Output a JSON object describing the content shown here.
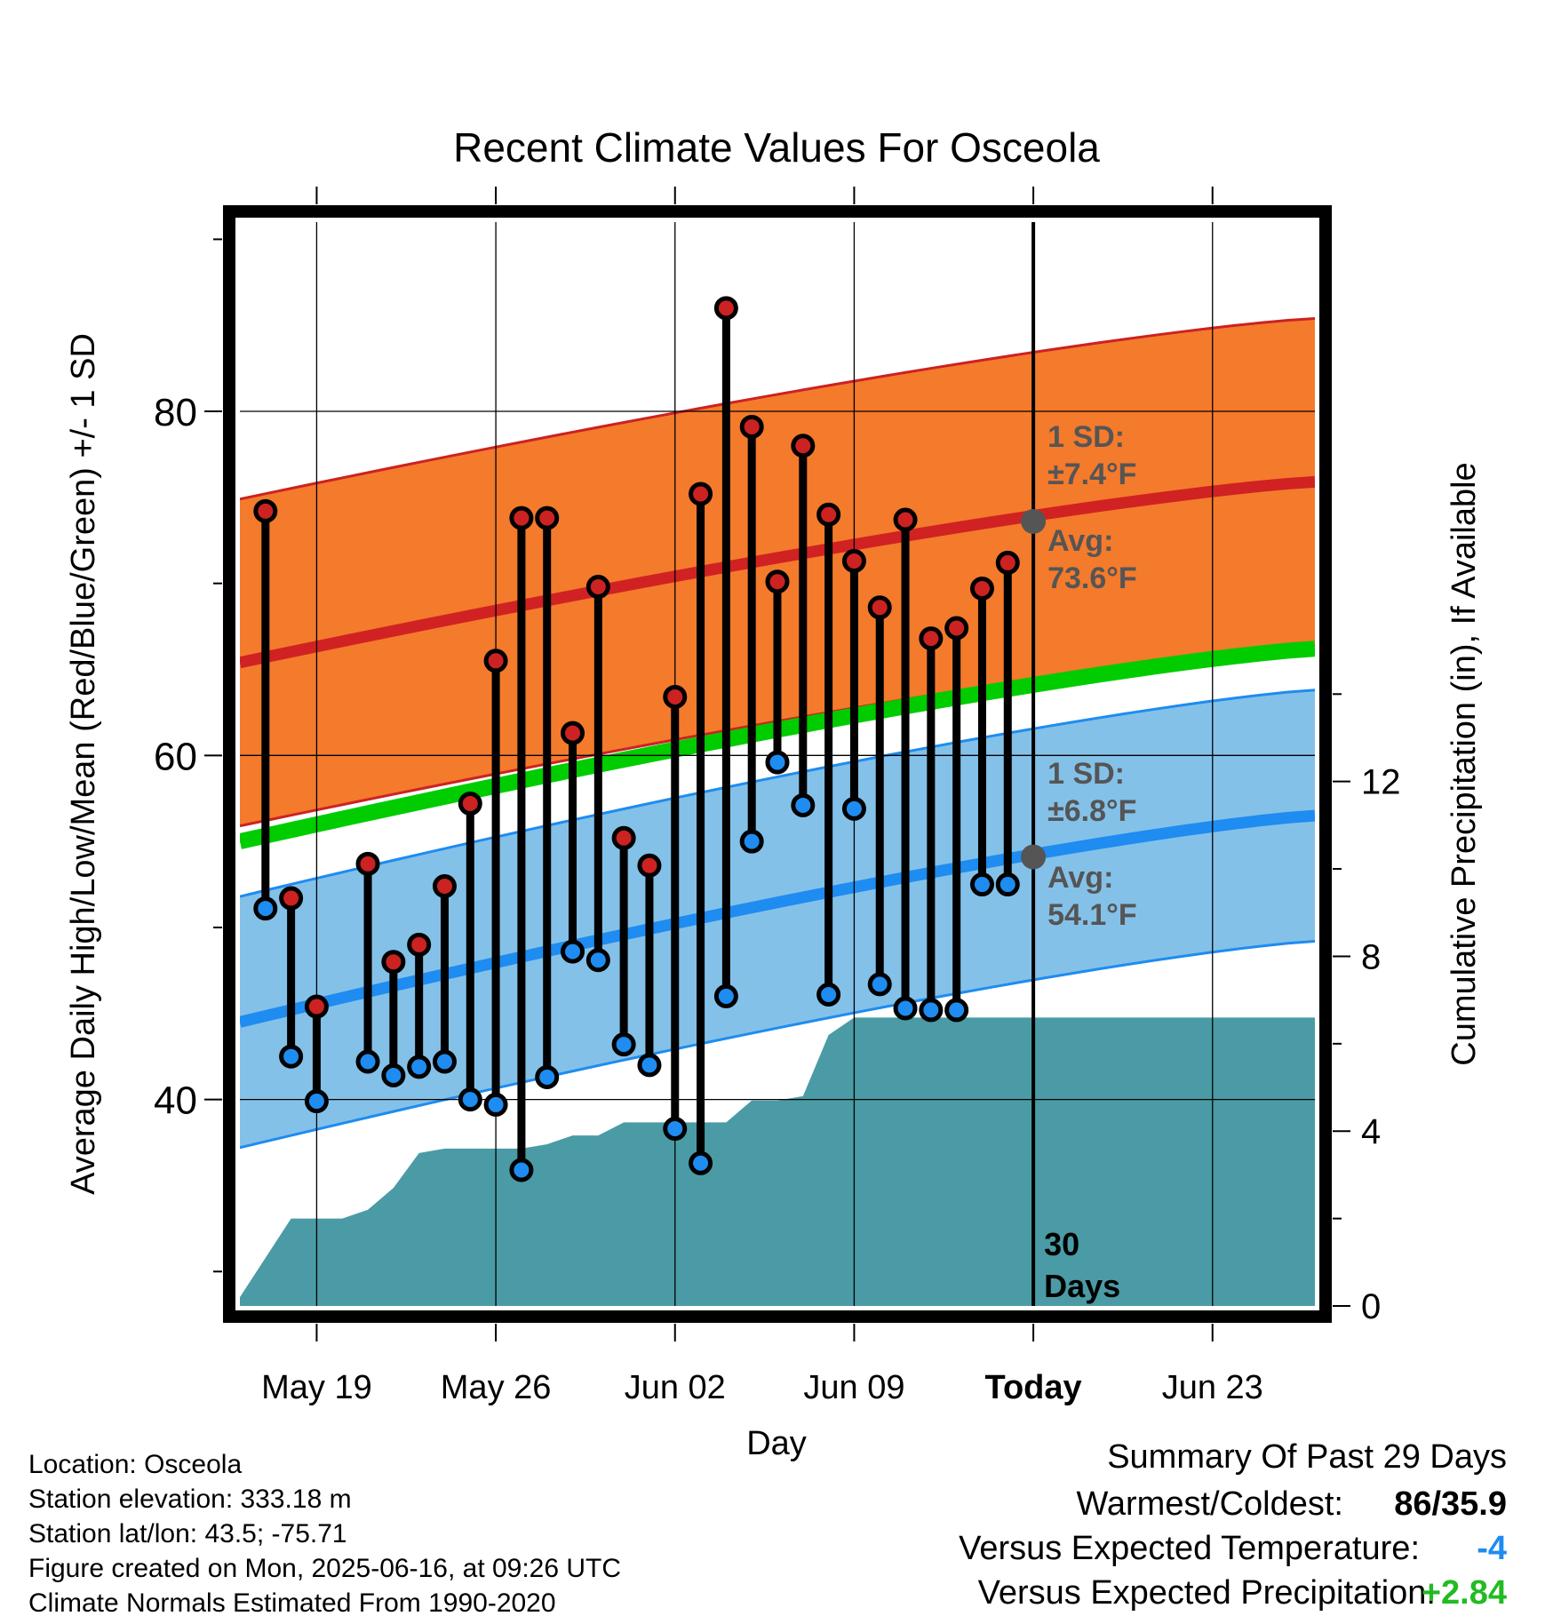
{
  "chart_data": {
    "type": "line",
    "title": "Recent Climate Values For Osceola",
    "xlabel": "Day",
    "ylabel": "Average Daily High/Low/Mean (Red/Blue/Green) +/- 1 SD",
    "y2label": "Cumulative Precipitation (in), If Available",
    "x_ticks": [
      "May 19",
      "May 26",
      "Jun 02",
      "Jun 09",
      "Today",
      "Jun 23"
    ],
    "y_ticks": [
      "40",
      "60",
      "80"
    ],
    "y2_ticks": [
      "0",
      "4",
      "8",
      "12"
    ],
    "ylim": [
      28,
      91
    ],
    "y2lim": [
      0,
      24.8
    ],
    "x_start": "2025-05-16",
    "x_end": "2025-06-27",
    "today": "2025-06-16",
    "today_label": "30 Days",
    "grid": true,
    "colors": {
      "high_band": "#f47a2c",
      "high_band_edge": "#cc2222",
      "high_mean": "#d02222",
      "low_band": "#84c1e8",
      "low_band_edge": "#1e8cf0",
      "low_mean": "#1e8cf0",
      "mean": "#00cc00",
      "precip": "#4a9ba5",
      "high_marker": "#cc2222",
      "low_marker": "#1e8cf0",
      "avg_dot": "#555555",
      "annotation": "#555555"
    },
    "normal_high": {
      "start": 65.4,
      "end": 75.9,
      "sd": 9.5
    },
    "normal_low": {
      "start": 44.5,
      "end": 56.5,
      "sd": 7.3
    },
    "normal_mean": {
      "start": 55.0,
      "end": 66.2
    },
    "annotations": {
      "high_sd_label": "1 SD:",
      "high_sd_value": "±7.4°F",
      "high_avg_label": "Avg:",
      "high_avg_value": "73.6°F",
      "high_avg": 73.6,
      "low_sd_label": "1 SD:",
      "low_sd_value": "±6.8°F",
      "low_avg_label": "Avg:",
      "low_avg_value": "54.1°F",
      "low_avg": 54.1
    },
    "days": [
      "2025-05-17",
      "2025-05-18",
      "2025-05-19",
      "2025-05-20",
      "2025-05-21",
      "2025-05-22",
      "2025-05-23",
      "2025-05-24",
      "2025-05-25",
      "2025-05-26",
      "2025-05-27",
      "2025-05-28",
      "2025-05-29",
      "2025-05-30",
      "2025-05-31",
      "2025-06-01",
      "2025-06-02",
      "2025-06-03",
      "2025-06-04",
      "2025-06-05",
      "2025-06-06",
      "2025-06-07",
      "2025-06-08",
      "2025-06-09",
      "2025-06-10",
      "2025-06-11",
      "2025-06-12",
      "2025-06-13",
      "2025-06-14",
      "2025-06-15"
    ],
    "highs": [
      74.2,
      51.7,
      45.4,
      null,
      53.7,
      48.0,
      49.0,
      52.4,
      57.2,
      65.5,
      73.8,
      73.8,
      61.3,
      69.8,
      55.2,
      53.6,
      63.4,
      75.2,
      86.0,
      79.1,
      70.1,
      78.0,
      74.0,
      71.3,
      68.6,
      73.7,
      66.8,
      67.4,
      69.7,
      71.2
    ],
    "lows": [
      51.1,
      42.5,
      39.9,
      null,
      42.2,
      41.4,
      41.9,
      42.2,
      40.0,
      39.7,
      35.9,
      41.3,
      48.6,
      48.1,
      43.2,
      42.0,
      38.3,
      36.3,
      46.0,
      55.0,
      59.6,
      57.1,
      46.1,
      56.9,
      46.7,
      45.3,
      45.2,
      45.2,
      52.5,
      52.5
    ],
    "precip": {
      "x": [
        "2025-05-16",
        "2025-05-17",
        "2025-05-18",
        "2025-05-19",
        "2025-05-20",
        "2025-05-21",
        "2025-05-22",
        "2025-05-23",
        "2025-05-24",
        "2025-05-25",
        "2025-05-26",
        "2025-05-27",
        "2025-05-28",
        "2025-05-29",
        "2025-05-30",
        "2025-05-31",
        "2025-06-01",
        "2025-06-02",
        "2025-06-03",
        "2025-06-04",
        "2025-06-05",
        "2025-06-06",
        "2025-06-07",
        "2025-06-08",
        "2025-06-09",
        "2025-06-10",
        "2025-06-11",
        "2025-06-12",
        "2025-06-27"
      ],
      "values": [
        0.2,
        1.1,
        2.0,
        2.0,
        2.0,
        2.2,
        2.7,
        3.5,
        3.6,
        3.6,
        3.6,
        3.6,
        3.7,
        3.9,
        3.9,
        4.2,
        4.2,
        4.2,
        4.2,
        4.2,
        4.7,
        4.7,
        4.8,
        6.2,
        6.6,
        6.6,
        6.6,
        6.6,
        6.6
      ]
    }
  },
  "footer": {
    "location": "Location: Osceola",
    "elevation": "Station elevation: 333.18 m",
    "latlon": "Station lat/lon: 43.5; -75.71",
    "created": "Figure created on Mon, 2025-06-16, at 09:26 UTC",
    "normals": "Climate Normals Estimated From 1990-2020"
  },
  "summary": {
    "title": "Summary Of Past 29 Days",
    "warmest_label": "Warmest/Coldest:",
    "warmest_value": "86/35.9",
    "temp_label": "Versus Expected Temperature:",
    "temp_value": "-4",
    "temp_color": "#1e8cf0",
    "precip_label": "Versus Expected Precipitation:",
    "precip_value": "+2.84",
    "precip_color": "#22bb22"
  }
}
